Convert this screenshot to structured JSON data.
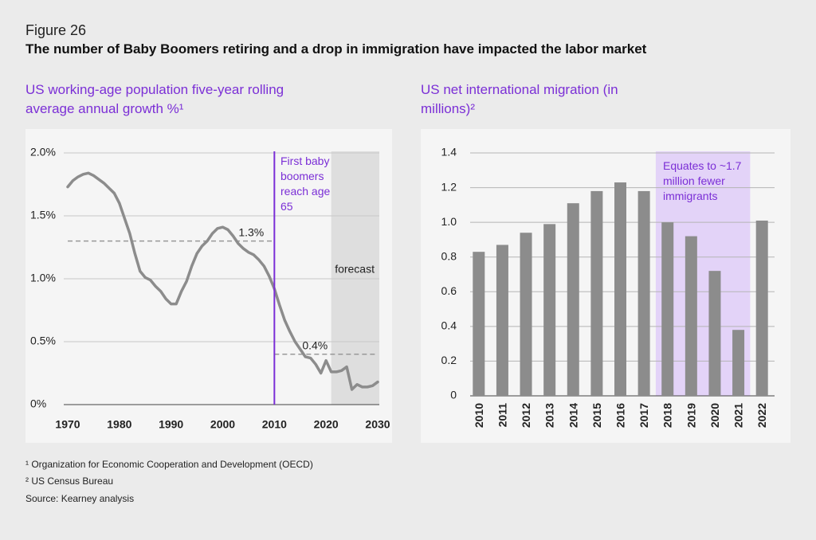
{
  "figure_label": "Figure 26",
  "title": "The number of Baby Boomers retiring and a drop in immigration have impacted the labor market",
  "footnotes": [
    "¹ Organization for Economic Cooperation and Development (OECD)",
    "² US Census Bureau",
    "Source: Kearney analysis"
  ],
  "chart_data": [
    {
      "type": "line",
      "title": "US working-age population five-year rolling average annual growth %¹",
      "x": [
        1970,
        1971,
        1972,
        1973,
        1974,
        1975,
        1976,
        1977,
        1978,
        1979,
        1980,
        1981,
        1982,
        1983,
        1984,
        1985,
        1986,
        1987,
        1988,
        1989,
        1990,
        1991,
        1992,
        1993,
        1994,
        1995,
        1996,
        1997,
        1998,
        1999,
        2000,
        2001,
        2002,
        2003,
        2004,
        2005,
        2006,
        2007,
        2008,
        2009,
        2010,
        2011,
        2012,
        2013,
        2014,
        2015,
        2016,
        2017,
        2018,
        2019,
        2020,
        2021,
        2022,
        2023,
        2024,
        2025,
        2026,
        2027,
        2028,
        2029,
        2030
      ],
      "values": [
        1.73,
        1.78,
        1.81,
        1.83,
        1.84,
        1.82,
        1.79,
        1.76,
        1.72,
        1.68,
        1.6,
        1.48,
        1.36,
        1.2,
        1.06,
        1.01,
        0.99,
        0.94,
        0.9,
        0.84,
        0.8,
        0.8,
        0.9,
        0.98,
        1.1,
        1.2,
        1.26,
        1.3,
        1.36,
        1.4,
        1.41,
        1.39,
        1.34,
        1.28,
        1.24,
        1.21,
        1.19,
        1.15,
        1.1,
        1.02,
        0.92,
        0.79,
        0.67,
        0.58,
        0.5,
        0.44,
        0.38,
        0.37,
        0.32,
        0.25,
        0.35,
        0.26,
        0.26,
        0.27,
        0.3,
        0.12,
        0.16,
        0.14,
        0.14,
        0.15,
        0.18
      ],
      "color": "#8c8c8c",
      "xlim": [
        1970,
        2030
      ],
      "xticks": [
        1970,
        1980,
        1990,
        2000,
        2010,
        2020,
        2030
      ],
      "ylim": [
        0,
        2
      ],
      "yticks": [
        {
          "value": 0,
          "label": "0%"
        },
        {
          "value": 0.5,
          "label": "0.5%"
        },
        {
          "value": 1,
          "label": "1.0%"
        },
        {
          "value": 1.5,
          "label": "1.5%"
        },
        {
          "value": 2,
          "label": "2.0%"
        }
      ],
      "grid": true,
      "reference_lines": [
        {
          "value": 1.3,
          "label": "1.3%",
          "from": 1970,
          "to": 2010
        },
        {
          "value": 0.4,
          "label": "0.4%",
          "from": 2010,
          "to": 2030
        }
      ],
      "vertical_line": {
        "x": 2010,
        "label": "First baby boomers reach age 65",
        "color": "#7b2fd6"
      },
      "shaded_region": {
        "start": 2021,
        "label": "forecast",
        "color": "#dedede"
      }
    },
    {
      "type": "bar",
      "title": "US net international migration (in millions)²",
      "categories": [
        "2010",
        "2011",
        "2012",
        "2013",
        "2014",
        "2015",
        "2016",
        "2017",
        "2018",
        "2019",
        "2020",
        "2021",
        "2022"
      ],
      "values": [
        0.83,
        0.87,
        0.94,
        0.99,
        1.11,
        1.18,
        1.23,
        1.18,
        1.0,
        0.92,
        0.72,
        0.38,
        1.01
      ],
      "color": "#8c8c8c",
      "ylim": [
        0,
        1.4
      ],
      "yticks": [
        0,
        0.2,
        0.4,
        0.6,
        0.8,
        {
          "value": 1,
          "label": "1.0"
        },
        1.2,
        1.4
      ],
      "grid": true,
      "highlight": {
        "from": "2018",
        "to": "2021",
        "label": "Equates to ~1.7 million fewer immigrants",
        "color": "#e3d3f8"
      }
    }
  ]
}
